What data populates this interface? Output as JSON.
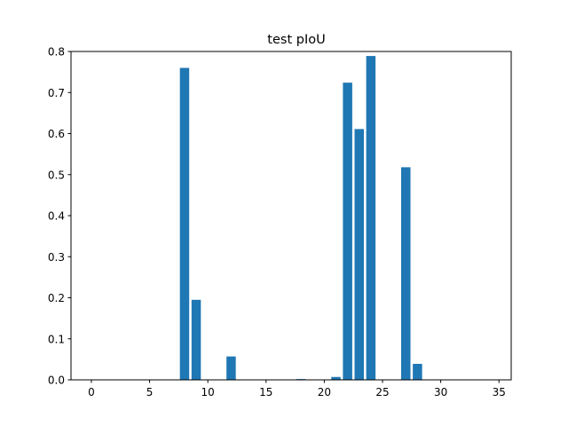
{
  "chart_data": {
    "type": "bar",
    "title": "test pIoU",
    "xlabel": "",
    "ylabel": "",
    "xlim": [
      -1.75,
      36.05
    ],
    "ylim": [
      0,
      0.8
    ],
    "xticks": [
      0,
      5,
      10,
      15,
      20,
      25,
      30,
      35
    ],
    "yticks": [
      0.0,
      0.1,
      0.2,
      0.3,
      0.4,
      0.5,
      0.6,
      0.7,
      0.8
    ],
    "xtick_labels": [
      "0",
      "5",
      "10",
      "15",
      "20",
      "25",
      "30",
      "35"
    ],
    "ytick_labels": [
      "0.0",
      "0.1",
      "0.2",
      "0.3",
      "0.4",
      "0.5",
      "0.6",
      "0.7",
      "0.8"
    ],
    "bar_color": "#1f77b4",
    "grid": false,
    "x": [
      0,
      1,
      2,
      3,
      4,
      5,
      6,
      7,
      8,
      9,
      10,
      11,
      12,
      13,
      14,
      15,
      16,
      17,
      18,
      19,
      20,
      21,
      22,
      23,
      24,
      25,
      26,
      27,
      28,
      29,
      30,
      31,
      32,
      33,
      34
    ],
    "values": [
      0,
      0,
      0,
      0,
      0,
      0,
      0,
      0,
      0.76,
      0.195,
      0,
      0,
      0.057,
      0,
      0,
      0,
      0,
      0,
      0.002,
      0,
      0,
      0.007,
      0.724,
      0.611,
      0.789,
      0,
      0,
      0.518,
      0.039,
      0,
      0,
      0,
      0,
      0,
      0
    ]
  }
}
